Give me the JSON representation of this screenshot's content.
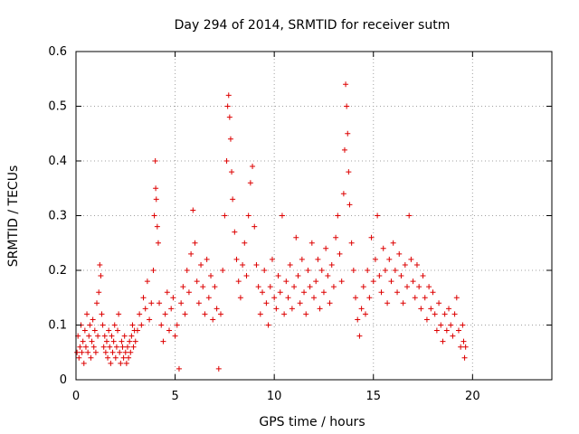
{
  "chart_data": {
    "type": "scatter",
    "title": "Day 294 of 2014, SRMTID for receiver sutm",
    "xlabel": "GPS time / hours",
    "ylabel": "SRMTID / TECUs",
    "xlim": [
      0,
      24
    ],
    "ylim": [
      0,
      0.6
    ],
    "x_ticks": [
      0,
      5,
      10,
      15,
      20
    ],
    "x_tick_labels": [
      "0",
      "5",
      "10",
      "15",
      "20"
    ],
    "y_ticks": [
      0,
      0.1,
      0.2,
      0.3,
      0.4,
      0.5,
      0.6
    ],
    "y_tick_labels": [
      "0",
      "0.1",
      "0.2",
      "0.3",
      "0.4",
      "0.5",
      "0.6"
    ],
    "grid": true,
    "marker": "plus",
    "series_color": "#dd0000",
    "series": [
      {
        "name": "SRMTID",
        "points": [
          [
            0.05,
            0.05
          ],
          [
            0.1,
            0.08
          ],
          [
            0.15,
            0.04
          ],
          [
            0.2,
            0.06
          ],
          [
            0.25,
            0.1
          ],
          [
            0.3,
            0.05
          ],
          [
            0.35,
            0.07
          ],
          [
            0.4,
            0.03
          ],
          [
            0.45,
            0.09
          ],
          [
            0.5,
            0.06
          ],
          [
            0.55,
            0.12
          ],
          [
            0.6,
            0.05
          ],
          [
            0.65,
            0.08
          ],
          [
            0.7,
            0.1
          ],
          [
            0.75,
            0.04
          ],
          [
            0.8,
            0.07
          ],
          [
            0.85,
            0.11
          ],
          [
            0.9,
            0.06
          ],
          [
            0.95,
            0.09
          ],
          [
            1.0,
            0.05
          ],
          [
            1.05,
            0.14
          ],
          [
            1.1,
            0.08
          ],
          [
            1.15,
            0.16
          ],
          [
            1.2,
            0.21
          ],
          [
            1.25,
            0.19
          ],
          [
            1.3,
            0.12
          ],
          [
            1.35,
            0.1
          ],
          [
            1.4,
            0.06
          ],
          [
            1.45,
            0.08
          ],
          [
            1.5,
            0.05
          ],
          [
            1.55,
            0.07
          ],
          [
            1.6,
            0.04
          ],
          [
            1.65,
            0.09
          ],
          [
            1.7,
            0.06
          ],
          [
            1.75,
            0.03
          ],
          [
            1.8,
            0.08
          ],
          [
            1.85,
            0.05
          ],
          [
            1.9,
            0.07
          ],
          [
            1.95,
            0.1
          ],
          [
            2.0,
            0.04
          ],
          [
            2.05,
            0.06
          ],
          [
            2.1,
            0.09
          ],
          [
            2.15,
            0.12
          ],
          [
            2.2,
            0.05
          ],
          [
            2.25,
            0.03
          ],
          [
            2.3,
            0.07
          ],
          [
            2.35,
            0.06
          ],
          [
            2.4,
            0.04
          ],
          [
            2.45,
            0.08
          ],
          [
            2.5,
            0.05
          ],
          [
            2.55,
            0.03
          ],
          [
            2.6,
            0.06
          ],
          [
            2.65,
            0.04
          ],
          [
            2.7,
            0.07
          ],
          [
            2.75,
            0.05
          ],
          [
            2.8,
            0.08
          ],
          [
            2.85,
            0.1
          ],
          [
            2.9,
            0.06
          ],
          [
            2.95,
            0.09
          ],
          [
            3.0,
            0.07
          ],
          [
            3.1,
            0.09
          ],
          [
            3.2,
            0.12
          ],
          [
            3.3,
            0.1
          ],
          [
            3.4,
            0.15
          ],
          [
            3.5,
            0.13
          ],
          [
            3.6,
            0.18
          ],
          [
            3.7,
            0.11
          ],
          [
            3.8,
            0.14
          ],
          [
            3.9,
            0.2
          ],
          [
            3.95,
            0.3
          ],
          [
            4.0,
            0.4
          ],
          [
            4.02,
            0.35
          ],
          [
            4.05,
            0.33
          ],
          [
            4.1,
            0.28
          ],
          [
            4.15,
            0.25
          ],
          [
            4.2,
            0.14
          ],
          [
            4.3,
            0.1
          ],
          [
            4.4,
            0.07
          ],
          [
            4.5,
            0.12
          ],
          [
            4.6,
            0.16
          ],
          [
            4.7,
            0.09
          ],
          [
            4.8,
            0.13
          ],
          [
            4.9,
            0.15
          ],
          [
            5.0,
            0.08
          ],
          [
            5.1,
            0.1
          ],
          [
            5.2,
            0.02
          ],
          [
            5.3,
            0.14
          ],
          [
            5.4,
            0.17
          ],
          [
            5.5,
            0.12
          ],
          [
            5.6,
            0.2
          ],
          [
            5.7,
            0.16
          ],
          [
            5.8,
            0.23
          ],
          [
            5.9,
            0.31
          ],
          [
            6.0,
            0.25
          ],
          [
            6.1,
            0.18
          ],
          [
            6.2,
            0.14
          ],
          [
            6.3,
            0.21
          ],
          [
            6.4,
            0.17
          ],
          [
            6.5,
            0.12
          ],
          [
            6.6,
            0.22
          ],
          [
            6.7,
            0.15
          ],
          [
            6.8,
            0.19
          ],
          [
            6.9,
            0.11
          ],
          [
            7.0,
            0.17
          ],
          [
            7.1,
            0.13
          ],
          [
            7.2,
            0.02
          ],
          [
            7.3,
            0.12
          ],
          [
            7.4,
            0.2
          ],
          [
            7.5,
            0.3
          ],
          [
            7.6,
            0.4
          ],
          [
            7.65,
            0.5
          ],
          [
            7.7,
            0.52
          ],
          [
            7.75,
            0.48
          ],
          [
            7.8,
            0.44
          ],
          [
            7.85,
            0.38
          ],
          [
            7.9,
            0.33
          ],
          [
            8.0,
            0.27
          ],
          [
            8.1,
            0.22
          ],
          [
            8.2,
            0.18
          ],
          [
            8.3,
            0.15
          ],
          [
            8.4,
            0.21
          ],
          [
            8.5,
            0.25
          ],
          [
            8.6,
            0.19
          ],
          [
            8.7,
            0.3
          ],
          [
            8.8,
            0.36
          ],
          [
            8.9,
            0.39
          ],
          [
            9.0,
            0.28
          ],
          [
            9.1,
            0.21
          ],
          [
            9.2,
            0.17
          ],
          [
            9.3,
            0.12
          ],
          [
            9.4,
            0.16
          ],
          [
            9.5,
            0.2
          ],
          [
            9.6,
            0.14
          ],
          [
            9.7,
            0.1
          ],
          [
            9.8,
            0.17
          ],
          [
            9.9,
            0.22
          ],
          [
            10.0,
            0.15
          ],
          [
            10.1,
            0.13
          ],
          [
            10.2,
            0.19
          ],
          [
            10.3,
            0.16
          ],
          [
            10.4,
            0.3
          ],
          [
            10.5,
            0.12
          ],
          [
            10.6,
            0.18
          ],
          [
            10.7,
            0.15
          ],
          [
            10.8,
            0.21
          ],
          [
            10.9,
            0.13
          ],
          [
            11.0,
            0.17
          ],
          [
            11.1,
            0.26
          ],
          [
            11.2,
            0.19
          ],
          [
            11.3,
            0.14
          ],
          [
            11.4,
            0.22
          ],
          [
            11.5,
            0.16
          ],
          [
            11.6,
            0.12
          ],
          [
            11.7,
            0.2
          ],
          [
            11.8,
            0.17
          ],
          [
            11.9,
            0.25
          ],
          [
            12.0,
            0.15
          ],
          [
            12.1,
            0.18
          ],
          [
            12.2,
            0.22
          ],
          [
            12.3,
            0.13
          ],
          [
            12.4,
            0.2
          ],
          [
            12.5,
            0.16
          ],
          [
            12.6,
            0.24
          ],
          [
            12.7,
            0.19
          ],
          [
            12.8,
            0.14
          ],
          [
            12.9,
            0.21
          ],
          [
            13.0,
            0.17
          ],
          [
            13.1,
            0.26
          ],
          [
            13.2,
            0.3
          ],
          [
            13.3,
            0.23
          ],
          [
            13.4,
            0.18
          ],
          [
            13.5,
            0.34
          ],
          [
            13.55,
            0.42
          ],
          [
            13.6,
            0.54
          ],
          [
            13.65,
            0.5
          ],
          [
            13.7,
            0.45
          ],
          [
            13.75,
            0.38
          ],
          [
            13.8,
            0.32
          ],
          [
            13.9,
            0.25
          ],
          [
            14.0,
            0.2
          ],
          [
            14.1,
            0.15
          ],
          [
            14.2,
            0.11
          ],
          [
            14.3,
            0.08
          ],
          [
            14.4,
            0.13
          ],
          [
            14.5,
            0.17
          ],
          [
            14.6,
            0.12
          ],
          [
            14.7,
            0.2
          ],
          [
            14.8,
            0.15
          ],
          [
            14.9,
            0.26
          ],
          [
            15.0,
            0.18
          ],
          [
            15.1,
            0.22
          ],
          [
            15.2,
            0.3
          ],
          [
            15.3,
            0.19
          ],
          [
            15.4,
            0.16
          ],
          [
            15.5,
            0.24
          ],
          [
            15.6,
            0.2
          ],
          [
            15.7,
            0.14
          ],
          [
            15.8,
            0.22
          ],
          [
            15.9,
            0.18
          ],
          [
            16.0,
            0.25
          ],
          [
            16.1,
            0.2
          ],
          [
            16.2,
            0.16
          ],
          [
            16.3,
            0.23
          ],
          [
            16.4,
            0.19
          ],
          [
            16.5,
            0.14
          ],
          [
            16.6,
            0.21
          ],
          [
            16.7,
            0.17
          ],
          [
            16.8,
            0.3
          ],
          [
            16.9,
            0.22
          ],
          [
            17.0,
            0.18
          ],
          [
            17.1,
            0.15
          ],
          [
            17.2,
            0.21
          ],
          [
            17.3,
            0.17
          ],
          [
            17.4,
            0.13
          ],
          [
            17.5,
            0.19
          ],
          [
            17.6,
            0.15
          ],
          [
            17.7,
            0.11
          ],
          [
            17.8,
            0.17
          ],
          [
            17.9,
            0.13
          ],
          [
            18.0,
            0.16
          ],
          [
            18.1,
            0.12
          ],
          [
            18.2,
            0.09
          ],
          [
            18.3,
            0.14
          ],
          [
            18.4,
            0.1
          ],
          [
            18.5,
            0.07
          ],
          [
            18.6,
            0.12
          ],
          [
            18.7,
            0.09
          ],
          [
            18.8,
            0.13
          ],
          [
            18.9,
            0.1
          ],
          [
            19.0,
            0.08
          ],
          [
            19.1,
            0.12
          ],
          [
            19.2,
            0.15
          ],
          [
            19.3,
            0.09
          ],
          [
            19.4,
            0.06
          ],
          [
            19.5,
            0.1
          ],
          [
            19.55,
            0.07
          ],
          [
            19.6,
            0.04
          ],
          [
            19.65,
            0.06
          ]
        ]
      }
    ]
  }
}
